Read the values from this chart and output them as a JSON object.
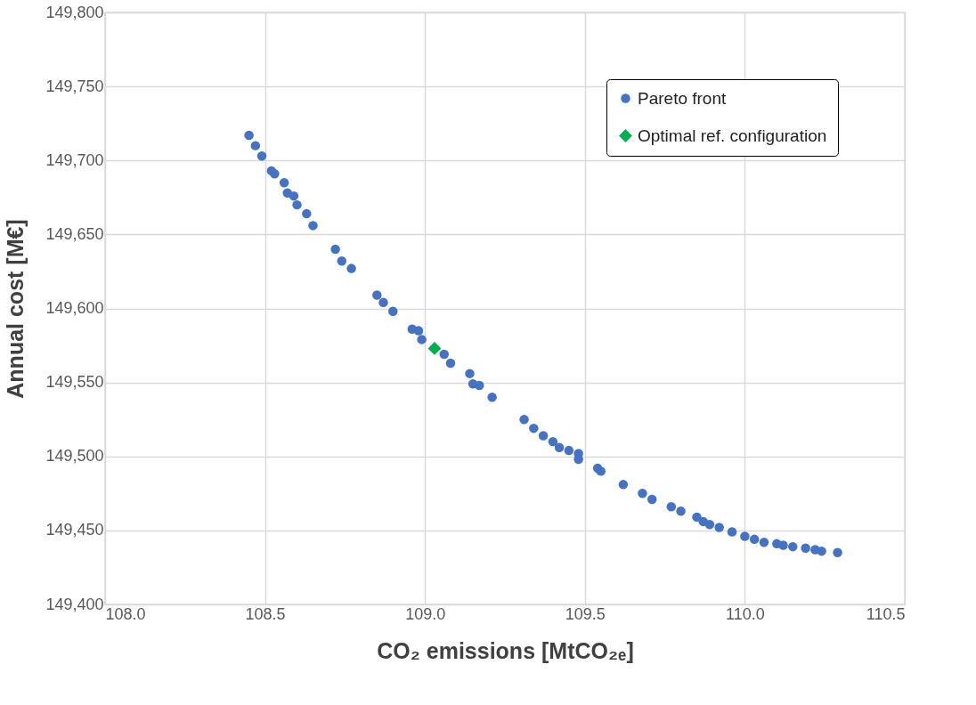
{
  "chart_data": {
    "type": "scatter",
    "xlabel": "CO₂ emissions [MtCO₂ₑ]",
    "ylabel": "Annual cost [M€]",
    "xlim": [
      108.0,
      110.5
    ],
    "xticks": [
      {
        "value": 108.0,
        "label": "108.0"
      },
      {
        "value": 108.5,
        "label": "108.5"
      },
      {
        "value": 109.0,
        "label": "109.0"
      },
      {
        "value": 109.5,
        "label": "109.5"
      },
      {
        "value": 110.0,
        "label": "110.0"
      },
      {
        "value": 110.5,
        "label": "110.5"
      }
    ],
    "ylim": [
      149400,
      149800
    ],
    "yticks": [
      {
        "value": 149400,
        "label": "149,400"
      },
      {
        "value": 149450,
        "label": "149,450"
      },
      {
        "value": 149500,
        "label": "149,500"
      },
      {
        "value": 149550,
        "label": "149,550"
      },
      {
        "value": 149600,
        "label": "149,600"
      },
      {
        "value": 149650,
        "label": "149,650"
      },
      {
        "value": 149700,
        "label": "149,700"
      },
      {
        "value": 149750,
        "label": "149,750"
      },
      {
        "value": 149800,
        "label": "149,800"
      }
    ],
    "grid": true,
    "legend": "top right",
    "series": [
      {
        "name": "Pareto front",
        "color": "#4472c4",
        "marker": "circle",
        "x": [
          108.45,
          108.47,
          108.49,
          108.52,
          108.53,
          108.56,
          108.57,
          108.59,
          108.6,
          108.63,
          108.65,
          108.72,
          108.74,
          108.77,
          108.85,
          108.87,
          108.9,
          108.96,
          108.98,
          108.99,
          109.06,
          109.08,
          109.14,
          109.15,
          109.17,
          109.21,
          109.31,
          109.34,
          109.37,
          109.4,
          109.42,
          109.45,
          109.48,
          109.48,
          109.54,
          109.55,
          109.62,
          109.68,
          109.71,
          109.77,
          109.8,
          109.85,
          109.87,
          109.89,
          109.92,
          109.96,
          110.0,
          110.03,
          110.06,
          110.1,
          110.12,
          110.15,
          110.19,
          110.22,
          110.24,
          110.29
        ],
        "values": [
          149717,
          149710,
          149703,
          149693,
          149691,
          149685,
          149678,
          149676,
          149670,
          149664,
          149656,
          149640,
          149632,
          149627,
          149609,
          149604,
          149598,
          149586,
          149585,
          149579,
          149569,
          149563,
          149556,
          149549,
          149548,
          149540,
          149525,
          149519,
          149514,
          149510,
          149506,
          149504,
          149502,
          149498,
          149492,
          149490,
          149481,
          149475,
          149471,
          149466,
          149463,
          149459,
          149456,
          149454,
          149452,
          149449,
          149446,
          149444,
          149442,
          149441,
          149440,
          149439,
          149438,
          149437,
          149436,
          149435
        ]
      },
      {
        "name": "Optimal ref. configuration",
        "color": "#00b050",
        "marker": "diamond",
        "x": [
          109.03
        ],
        "values": [
          149573
        ]
      }
    ]
  }
}
